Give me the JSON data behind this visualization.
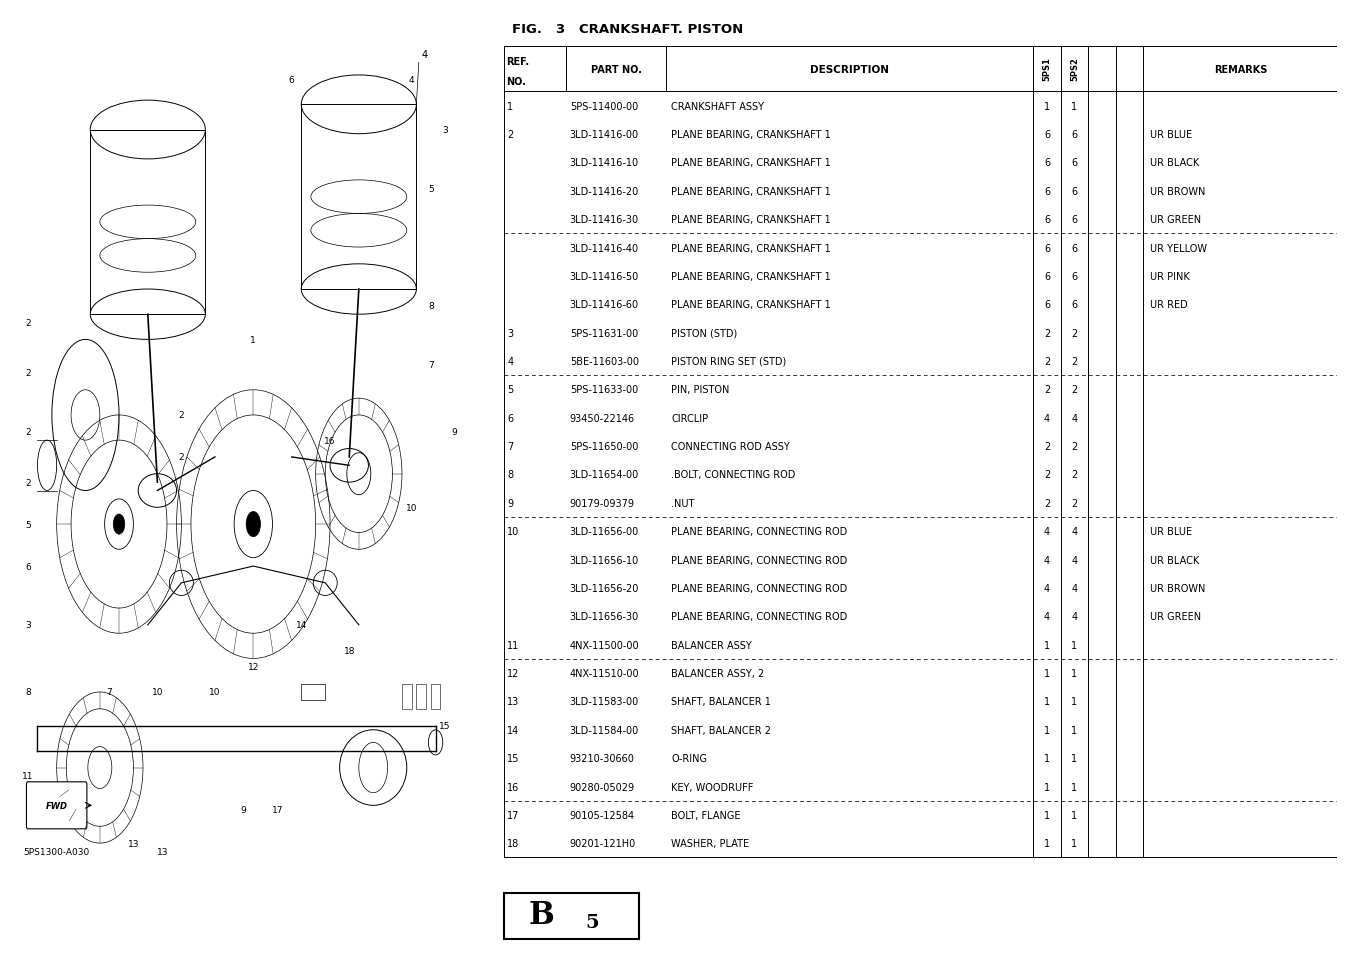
{
  "title": "FIG.   3   CRANKSHAFT. PISTON",
  "bg_color": "#ffffff",
  "rows": [
    {
      "ref": "1",
      "part": "5PS-11400-00",
      "desc": "CRANKSHAFT ASSY",
      "q1": "1",
      "q2": "1",
      "remark": "",
      "dashed_before": false
    },
    {
      "ref": "2",
      "part": "3LD-11416-00",
      "desc": "PLANE BEARING, CRANKSHAFT 1",
      "q1": "6",
      "q2": "6",
      "remark": "UR BLUE",
      "dashed_before": false
    },
    {
      "ref": "",
      "part": "3LD-11416-10",
      "desc": "PLANE BEARING, CRANKSHAFT 1",
      "q1": "6",
      "q2": "6",
      "remark": "UR BLACK",
      "dashed_before": false
    },
    {
      "ref": "",
      "part": "3LD-11416-20",
      "desc": "PLANE BEARING, CRANKSHAFT 1",
      "q1": "6",
      "q2": "6",
      "remark": "UR BROWN",
      "dashed_before": false
    },
    {
      "ref": "",
      "part": "3LD-11416-30",
      "desc": "PLANE BEARING, CRANKSHAFT 1",
      "q1": "6",
      "q2": "6",
      "remark": "UR GREEN",
      "dashed_before": false
    },
    {
      "ref": "",
      "part": "3LD-11416-40",
      "desc": "PLANE BEARING, CRANKSHAFT 1",
      "q1": "6",
      "q2": "6",
      "remark": "UR YELLOW",
      "dashed_before": true
    },
    {
      "ref": "",
      "part": "3LD-11416-50",
      "desc": "PLANE BEARING, CRANKSHAFT 1",
      "q1": "6",
      "q2": "6",
      "remark": "UR PINK",
      "dashed_before": false
    },
    {
      "ref": "",
      "part": "3LD-11416-60",
      "desc": "PLANE BEARING, CRANKSHAFT 1",
      "q1": "6",
      "q2": "6",
      "remark": "UR RED",
      "dashed_before": false
    },
    {
      "ref": "3",
      "part": "5PS-11631-00",
      "desc": "PISTON (STD)",
      "q1": "2",
      "q2": "2",
      "remark": "",
      "dashed_before": false
    },
    {
      "ref": "4",
      "part": "5BE-11603-00",
      "desc": "PISTON RING SET (STD)",
      "q1": "2",
      "q2": "2",
      "remark": "",
      "dashed_before": false
    },
    {
      "ref": "5",
      "part": "5PS-11633-00",
      "desc": "PIN, PISTON",
      "q1": "2",
      "q2": "2",
      "remark": "",
      "dashed_before": true
    },
    {
      "ref": "6",
      "part": "93450-22146",
      "desc": "CIRCLIP",
      "q1": "4",
      "q2": "4",
      "remark": "",
      "dashed_before": false
    },
    {
      "ref": "7",
      "part": "5PS-11650-00",
      "desc": "CONNECTING ROD ASSY",
      "q1": "2",
      "q2": "2",
      "remark": "",
      "dashed_before": false
    },
    {
      "ref": "8",
      "part": "3LD-11654-00",
      "desc": ".BOLT, CONNECTING ROD",
      "q1": "2",
      "q2": "2",
      "remark": "",
      "dashed_before": false
    },
    {
      "ref": "9",
      "part": "90179-09379",
      "desc": ".NUT",
      "q1": "2",
      "q2": "2",
      "remark": "",
      "dashed_before": false
    },
    {
      "ref": "10",
      "part": "3LD-11656-00",
      "desc": "PLANE BEARING, CONNECTING ROD",
      "q1": "4",
      "q2": "4",
      "remark": "UR BLUE",
      "dashed_before": true
    },
    {
      "ref": "",
      "part": "3LD-11656-10",
      "desc": "PLANE BEARING, CONNECTING ROD",
      "q1": "4",
      "q2": "4",
      "remark": "UR BLACK",
      "dashed_before": false
    },
    {
      "ref": "",
      "part": "3LD-11656-20",
      "desc": "PLANE BEARING, CONNECTING ROD",
      "q1": "4",
      "q2": "4",
      "remark": "UR BROWN",
      "dashed_before": false
    },
    {
      "ref": "",
      "part": "3LD-11656-30",
      "desc": "PLANE BEARING, CONNECTING ROD",
      "q1": "4",
      "q2": "4",
      "remark": "UR GREEN",
      "dashed_before": false
    },
    {
      "ref": "11",
      "part": "4NX-11500-00",
      "desc": "BALANCER ASSY",
      "q1": "1",
      "q2": "1",
      "remark": "",
      "dashed_before": false
    },
    {
      "ref": "12",
      "part": "4NX-11510-00",
      "desc": "BALANCER ASSY, 2",
      "q1": "1",
      "q2": "1",
      "remark": "",
      "dashed_before": true
    },
    {
      "ref": "13",
      "part": "3LD-11583-00",
      "desc": "SHAFT, BALANCER 1",
      "q1": "1",
      "q2": "1",
      "remark": "",
      "dashed_before": false
    },
    {
      "ref": "14",
      "part": "3LD-11584-00",
      "desc": "SHAFT, BALANCER 2",
      "q1": "1",
      "q2": "1",
      "remark": "",
      "dashed_before": false
    },
    {
      "ref": "15",
      "part": "93210-30660",
      "desc": "O-RING",
      "q1": "1",
      "q2": "1",
      "remark": "",
      "dashed_before": false
    },
    {
      "ref": "16",
      "part": "90280-05029",
      "desc": "KEY, WOODRUFF",
      "q1": "1",
      "q2": "1",
      "remark": "",
      "dashed_before": false
    },
    {
      "ref": "17",
      "part": "90105-12584",
      "desc": "BOLT, FLANGE",
      "q1": "1",
      "q2": "1",
      "remark": "",
      "dashed_before": true
    },
    {
      "ref": "18",
      "part": "90201-121H0",
      "desc": "WASHER, PLATE",
      "q1": "1",
      "q2": "1",
      "remark": "",
      "dashed_before": false
    }
  ],
  "page_label_b": "B",
  "page_label_5": "5",
  "diagram_label": "5PS1300-A030"
}
